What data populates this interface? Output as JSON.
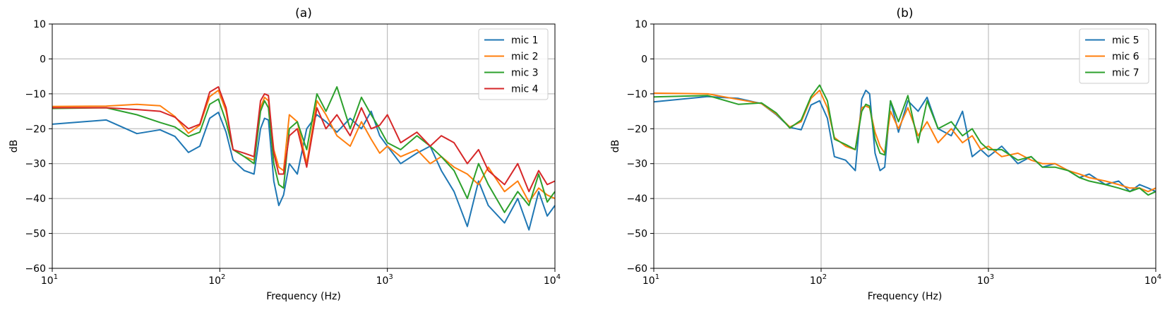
{
  "chart_data": [
    {
      "type": "line",
      "title": "(a)",
      "xlabel": "Frequency (Hz)",
      "ylabel": "dB",
      "xscale": "log",
      "xlim": [
        10,
        10000
      ],
      "ylim": [
        -60,
        10
      ],
      "yticks": [
        10,
        0,
        -10,
        -20,
        -30,
        -40,
        -50,
        -60
      ],
      "xticks": [
        {
          "base": "10",
          "exp": "1"
        },
        {
          "base": "10",
          "exp": "2"
        },
        {
          "base": "10",
          "exp": "3"
        },
        {
          "base": "10",
          "exp": "4"
        }
      ],
      "grid": true,
      "legend_position": "top-right",
      "series": [
        {
          "name": "mic 1",
          "color": "#1f77b4",
          "x": [
            10,
            21,
            32,
            44,
            54,
            65,
            76,
            87,
            98,
            109,
            120,
            140,
            160,
            175,
            185,
            195,
            210,
            225,
            240,
            260,
            290,
            330,
            380,
            430,
            500,
            600,
            700,
            800,
            900,
            1000,
            1200,
            1500,
            1800,
            2100,
            2500,
            3000,
            3500,
            4000,
            5000,
            6000,
            7000,
            8000,
            9000,
            10000
          ],
          "y": [
            -18.7,
            -17.5,
            -21.4,
            -20.3,
            -22.2,
            -26.8,
            -25.0,
            -17.0,
            -15.3,
            -21.0,
            -29.0,
            -32.0,
            -33.0,
            -20.0,
            -17.0,
            -17.5,
            -35.0,
            -42.0,
            -39.0,
            -30.0,
            -33.0,
            -20.0,
            -16.0,
            -18.0,
            -21.0,
            -17.0,
            -20.0,
            -15.0,
            -22.0,
            -25.0,
            -30.0,
            -27.0,
            -25.0,
            -32.0,
            -38.0,
            -48.0,
            -35.0,
            -42.0,
            -47.0,
            -40.0,
            -49.0,
            -38.0,
            -45.0,
            -42.0
          ]
        },
        {
          "name": "mic 2",
          "color": "#ff7f0e",
          "x": [
            10,
            21,
            32,
            44,
            54,
            65,
            76,
            87,
            98,
            109,
            120,
            140,
            160,
            175,
            185,
            195,
            210,
            225,
            240,
            260,
            290,
            330,
            380,
            430,
            500,
            600,
            700,
            800,
            900,
            1000,
            1200,
            1500,
            1800,
            2100,
            2500,
            3000,
            3500,
            4000,
            5000,
            6000,
            7000,
            8000,
            9000,
            10000
          ],
          "y": [
            -13.6,
            -13.5,
            -13.0,
            -13.4,
            -16.5,
            -21.3,
            -19.0,
            -10.8,
            -9.0,
            -15.0,
            -26.0,
            -28.0,
            -29.0,
            -14.0,
            -11.0,
            -12.0,
            -26.0,
            -31.0,
            -32.0,
            -16.0,
            -18.0,
            -30.0,
            -12.0,
            -16.0,
            -22.0,
            -25.0,
            -18.0,
            -23.0,
            -27.0,
            -25.0,
            -28.0,
            -26.0,
            -30.0,
            -28.0,
            -31.0,
            -33.0,
            -36.0,
            -31.0,
            -38.0,
            -35.0,
            -41.0,
            -37.0,
            -39.0,
            -40.0
          ]
        },
        {
          "name": "mic 3",
          "color": "#2ca02c",
          "x": [
            10,
            21,
            32,
            44,
            54,
            65,
            76,
            87,
            98,
            109,
            120,
            140,
            160,
            175,
            185,
            195,
            210,
            225,
            240,
            260,
            290,
            330,
            380,
            430,
            500,
            600,
            700,
            800,
            900,
            1000,
            1200,
            1500,
            1800,
            2100,
            2500,
            3000,
            3500,
            4000,
            5000,
            6000,
            7000,
            8000,
            9000,
            10000
          ],
          "y": [
            -14.2,
            -14.0,
            -16.0,
            -18.2,
            -19.5,
            -22.2,
            -21.0,
            -13.0,
            -11.5,
            -18.0,
            -26.0,
            -28.0,
            -30.0,
            -15.0,
            -12.0,
            -14.0,
            -30.0,
            -36.0,
            -37.0,
            -20.0,
            -18.0,
            -26.0,
            -10.0,
            -15.0,
            -8.0,
            -20.0,
            -11.0,
            -16.0,
            -20.0,
            -24.0,
            -26.0,
            -22.0,
            -25.0,
            -28.0,
            -32.0,
            -40.0,
            -30.0,
            -36.0,
            -44.0,
            -38.0,
            -42.0,
            -33.0,
            -41.0,
            -38.0
          ]
        },
        {
          "name": "mic 4",
          "color": "#d62728",
          "x": [
            10,
            21,
            32,
            44,
            54,
            65,
            76,
            87,
            98,
            109,
            120,
            140,
            160,
            175,
            185,
            195,
            210,
            225,
            240,
            260,
            290,
            330,
            380,
            430,
            500,
            600,
            700,
            800,
            900,
            1000,
            1200,
            1500,
            1800,
            2100,
            2500,
            3000,
            3500,
            4000,
            5000,
            6000,
            7000,
            8000,
            9000,
            10000
          ],
          "y": [
            -14.0,
            -14.0,
            -14.5,
            -15.0,
            -16.7,
            -20.0,
            -18.7,
            -9.5,
            -8.0,
            -14.0,
            -26.0,
            -27.0,
            -28.0,
            -12.0,
            -10.0,
            -10.5,
            -27.0,
            -33.0,
            -33.0,
            -22.0,
            -20.0,
            -31.0,
            -14.0,
            -20.0,
            -16.0,
            -22.0,
            -14.0,
            -20.0,
            -19.0,
            -16.0,
            -24.0,
            -21.0,
            -25.0,
            -22.0,
            -24.0,
            -30.0,
            -26.0,
            -32.0,
            -36.0,
            -30.0,
            -38.0,
            -32.0,
            -36.0,
            -35.0
          ]
        }
      ]
    },
    {
      "type": "line",
      "title": "(b)",
      "xlabel": "Frequency (Hz)",
      "ylabel": "dB",
      "xscale": "log",
      "xlim": [
        10,
        10000
      ],
      "ylim": [
        -60,
        10
      ],
      "yticks": [
        10,
        0,
        -10,
        -20,
        -30,
        -40,
        -50,
        -60
      ],
      "xticks": [
        {
          "base": "10",
          "exp": "1"
        },
        {
          "base": "10",
          "exp": "2"
        },
        {
          "base": "10",
          "exp": "3"
        },
        {
          "base": "10",
          "exp": "4"
        }
      ],
      "grid": true,
      "legend_position": "top-right",
      "series": [
        {
          "name": "mic 5",
          "color": "#1f77b4",
          "x": [
            10,
            21,
            32,
            44,
            54,
            65,
            76,
            87,
            98,
            109,
            120,
            140,
            160,
            175,
            185,
            195,
            210,
            225,
            240,
            260,
            290,
            330,
            380,
            430,
            500,
            600,
            700,
            800,
            900,
            1000,
            1200,
            1500,
            1800,
            2100,
            2500,
            3000,
            3500,
            4000,
            5000,
            6000,
            7000,
            8000,
            9000,
            10000
          ],
          "y": [
            -12.3,
            -10.8,
            -11.3,
            -12.8,
            -16.0,
            -19.6,
            -20.3,
            -13.2,
            -12.0,
            -17.0,
            -28.0,
            -29.0,
            -32.0,
            -11.5,
            -9.0,
            -10.0,
            -27.0,
            -32.0,
            -31.0,
            -12.0,
            -21.0,
            -12.0,
            -15.0,
            -11.0,
            -20.0,
            -22.0,
            -15.0,
            -28.0,
            -26.0,
            -28.0,
            -25.0,
            -30.0,
            -28.0,
            -31.0,
            -30.0,
            -32.0,
            -34.0,
            -33.0,
            -36.0,
            -35.0,
            -38.0,
            -36.0,
            -37.0,
            -38.0
          ]
        },
        {
          "name": "mic 6",
          "color": "#ff7f0e",
          "x": [
            10,
            21,
            32,
            44,
            54,
            65,
            76,
            87,
            98,
            109,
            120,
            140,
            160,
            175,
            185,
            195,
            210,
            225,
            240,
            260,
            290,
            330,
            380,
            430,
            500,
            600,
            700,
            800,
            900,
            1000,
            1200,
            1500,
            1800,
            2100,
            2500,
            3000,
            3500,
            4000,
            5000,
            6000,
            7000,
            8000,
            9000,
            10000
          ],
          "y": [
            -9.8,
            -10.0,
            -11.6,
            -12.8,
            -15.8,
            -19.5,
            -18.0,
            -11.3,
            -9.0,
            -14.0,
            -22.5,
            -25.0,
            -26.0,
            -14.0,
            -13.5,
            -14.0,
            -21.0,
            -25.0,
            -27.0,
            -15.0,
            -20.0,
            -14.0,
            -22.0,
            -18.0,
            -24.0,
            -20.0,
            -24.0,
            -22.0,
            -26.0,
            -25.0,
            -28.0,
            -27.0,
            -29.0,
            -30.0,
            -30.0,
            -32.0,
            -33.0,
            -34.0,
            -35.0,
            -36.0,
            -37.0,
            -37.0,
            -38.0,
            -37.0
          ]
        },
        {
          "name": "mic 7",
          "color": "#2ca02c",
          "x": [
            10,
            21,
            32,
            44,
            54,
            65,
            76,
            87,
            98,
            109,
            120,
            140,
            160,
            175,
            185,
            195,
            210,
            225,
            240,
            260,
            290,
            330,
            380,
            430,
            500,
            600,
            700,
            800,
            900,
            1000,
            1200,
            1500,
            1800,
            2100,
            2500,
            3000,
            3500,
            4000,
            5000,
            6000,
            7000,
            8000,
            9000,
            10000
          ],
          "y": [
            -10.9,
            -10.5,
            -13.0,
            -12.6,
            -15.5,
            -19.8,
            -17.5,
            -10.8,
            -7.5,
            -12.0,
            -23.0,
            -24.5,
            -26.0,
            -15.0,
            -13.0,
            -13.5,
            -23.0,
            -27.0,
            -27.5,
            -12.0,
            -18.0,
            -10.5,
            -24.0,
            -12.0,
            -20.0,
            -18.0,
            -22.0,
            -20.0,
            -24.0,
            -26.0,
            -26.0,
            -29.0,
            -28.0,
            -31.0,
            -31.0,
            -32.0,
            -34.0,
            -35.0,
            -36.0,
            -37.0,
            -38.0,
            -37.0,
            -39.0,
            -38.0
          ]
        }
      ]
    }
  ]
}
